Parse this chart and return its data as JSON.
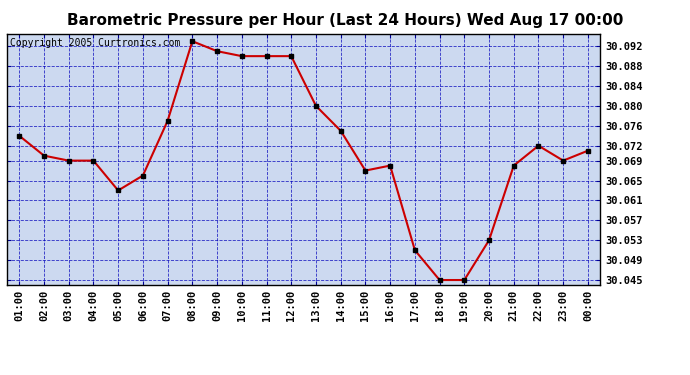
{
  "title": "Barometric Pressure per Hour (Last 24 Hours) Wed Aug 17 00:00",
  "copyright": "Copyright 2005 Curtronics.com",
  "x_labels": [
    "01:00",
    "02:00",
    "03:00",
    "04:00",
    "05:00",
    "06:00",
    "07:00",
    "08:00",
    "09:00",
    "10:00",
    "11:00",
    "12:00",
    "13:00",
    "14:00",
    "15:00",
    "16:00",
    "17:00",
    "18:00",
    "19:00",
    "20:00",
    "21:00",
    "22:00",
    "23:00",
    "00:00"
  ],
  "y_values": [
    30.074,
    30.07,
    30.069,
    30.069,
    30.063,
    30.066,
    30.077,
    30.093,
    30.091,
    30.09,
    30.09,
    30.09,
    30.08,
    30.075,
    30.067,
    30.068,
    30.051,
    30.045,
    30.045,
    30.053,
    30.068,
    30.072,
    30.069,
    30.071
  ],
  "ylim_min": 30.044,
  "ylim_max": 30.0945,
  "yticks": [
    30.045,
    30.049,
    30.053,
    30.057,
    30.061,
    30.065,
    30.069,
    30.072,
    30.076,
    30.08,
    30.084,
    30.088,
    30.092
  ],
  "line_color": "#cc0000",
  "marker_color": "#000000",
  "bg_color": "#ccd9f0",
  "grid_color": "#0000bb",
  "title_fontsize": 11,
  "copyright_fontsize": 7,
  "tick_fontsize": 7.5,
  "ylabel_fontsize": 8
}
